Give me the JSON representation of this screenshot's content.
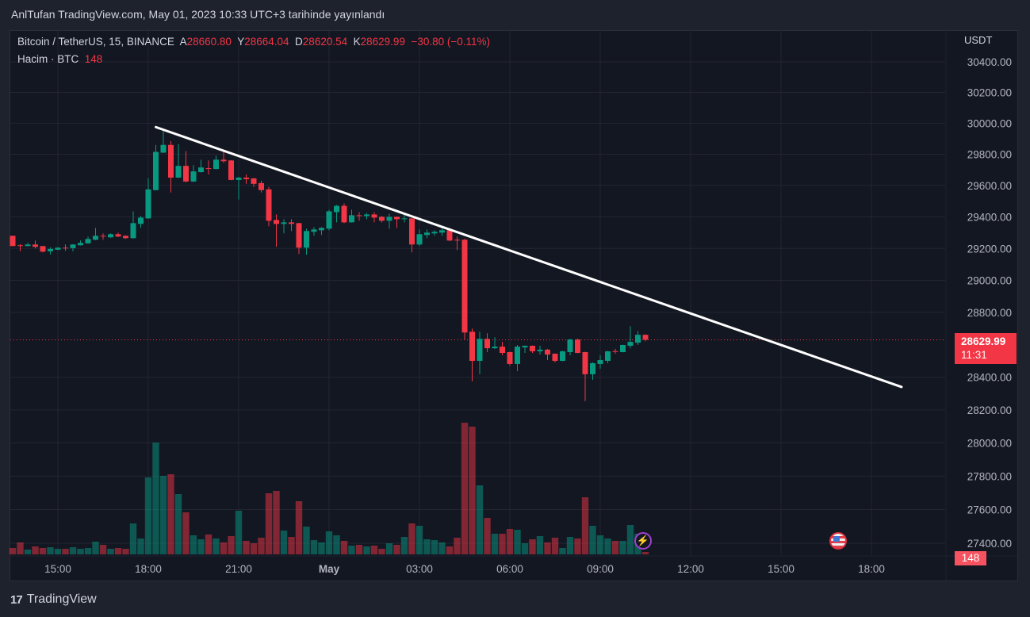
{
  "header": {
    "published": "AnlTufan TradingView.com, May 01, 2023 10:33 UTC+3 tarihinde yayınlandı"
  },
  "legend": {
    "symbol": "Bitcoin / TetherUS, 15, BINANCE",
    "open_label": "A",
    "open": "28660.80",
    "high_label": "Y",
    "high": "28664.04",
    "low_label": "D",
    "low": "28620.54",
    "close_label": "K",
    "close": "28629.99",
    "change": "−30.80 (−0.11%)",
    "volume_title": "Hacim · BTC",
    "volume_value": "148"
  },
  "axis": {
    "currency": "USDT",
    "price_ticks": [
      "30400.00",
      "30200.00",
      "30000.00",
      "29800.00",
      "29600.00",
      "29400.00",
      "29200.00",
      "29000.00",
      "28800.00",
      "28400.00",
      "28200.00",
      "28000.00",
      "27800.00",
      "27600.00",
      "27400.00"
    ],
    "time_ticks": [
      {
        "label": "15:00",
        "index": 6
      },
      {
        "label": "18:00",
        "index": 18
      },
      {
        "label": "21:00",
        "index": 30
      },
      {
        "label": "May",
        "index": 42,
        "bold": true
      },
      {
        "label": "03:00",
        "index": 54
      },
      {
        "label": "06:00",
        "index": 66
      },
      {
        "label": "09:00",
        "index": 78
      },
      {
        "label": "12:00",
        "index": 90
      },
      {
        "label": "15:00",
        "index": 102
      },
      {
        "label": "18:00",
        "index": 114
      }
    ],
    "last_price": "28629.99",
    "countdown": "11:31",
    "last_volume": "148"
  },
  "colors": {
    "up": "#089981",
    "down": "#f23645",
    "bg": "#131722",
    "grid": "#232632",
    "trend": "#ffffff"
  },
  "chart_data": {
    "type": "candlestick",
    "interval_minutes": 15,
    "first_bar_time": "13:30",
    "price_range": [
      27400,
      30400
    ],
    "fields": [
      "open",
      "high",
      "low",
      "close",
      "volume"
    ],
    "candles": [
      [
        29280,
        29280,
        29215,
        29215,
        400
      ],
      [
        29220,
        29227,
        29182,
        29215,
        750
      ],
      [
        29215,
        29235,
        29215,
        29225,
        300
      ],
      [
        29225,
        29250,
        29200,
        29210,
        500
      ],
      [
        29215,
        29215,
        29175,
        29180,
        400
      ],
      [
        29182,
        29207,
        29162,
        29197,
        450
      ],
      [
        29192,
        29207,
        29190,
        29205,
        350
      ],
      [
        29205,
        29225,
        29185,
        29203,
        350
      ],
      [
        29202,
        29227,
        29182,
        29225,
        450
      ],
      [
        29220,
        29250,
        29218,
        29235,
        350
      ],
      [
        29232,
        29275,
        29230,
        29260,
        400
      ],
      [
        29255,
        29330,
        29252,
        29280,
        800
      ],
      [
        29280,
        29295,
        29255,
        29275,
        600
      ],
      [
        29270,
        29295,
        29268,
        29290,
        350
      ],
      [
        29290,
        29300,
        29273,
        29275,
        400
      ],
      [
        29280,
        29282,
        29260,
        29265,
        350
      ],
      [
        29265,
        29435,
        29262,
        29360,
        1950
      ],
      [
        29355,
        29405,
        29330,
        29395,
        1000
      ],
      [
        29390,
        29645,
        29388,
        29575,
        4850
      ],
      [
        29570,
        29860,
        29568,
        29815,
        7050
      ],
      [
        29810,
        29960,
        29808,
        29860,
        4950
      ],
      [
        29860,
        29885,
        29555,
        29650,
        5050
      ],
      [
        29650,
        29865,
        29648,
        29725,
        3800
      ],
      [
        29725,
        29820,
        29620,
        29625,
        2650
      ],
      [
        29625,
        29730,
        29622,
        29690,
        1200
      ],
      [
        29685,
        29765,
        29683,
        29715,
        950
      ],
      [
        29710,
        29760,
        29670,
        29705,
        1250
      ],
      [
        29705,
        29790,
        29703,
        29765,
        1000
      ],
      [
        29765,
        29820,
        29745,
        29755,
        750
      ],
      [
        29760,
        29762,
        29633,
        29635,
        1150
      ],
      [
        29635,
        29655,
        29510,
        29650,
        2750
      ],
      [
        29650,
        29670,
        29610,
        29640,
        850
      ],
      [
        29645,
        29647,
        29590,
        29610,
        700
      ],
      [
        29615,
        29630,
        29555,
        29570,
        1050
      ],
      [
        29575,
        29590,
        29340,
        29375,
        3850
      ],
      [
        29380,
        29415,
        29210,
        29355,
        4000
      ],
      [
        29355,
        29385,
        29295,
        29365,
        1500
      ],
      [
        29365,
        29385,
        29310,
        29355,
        1100
      ],
      [
        29360,
        29362,
        29165,
        29205,
        3350
      ],
      [
        29205,
        29325,
        29160,
        29310,
        1750
      ],
      [
        29305,
        29335,
        29280,
        29320,
        900
      ],
      [
        29315,
        29335,
        29285,
        29330,
        750
      ],
      [
        29325,
        29445,
        29315,
        29435,
        1450
      ],
      [
        29430,
        29475,
        29365,
        29470,
        1200
      ],
      [
        29470,
        29485,
        29360,
        29365,
        850
      ],
      [
        29365,
        29445,
        29363,
        29410,
        550
      ],
      [
        29410,
        29430,
        29375,
        29408,
        600
      ],
      [
        29405,
        29425,
        29385,
        29415,
        500
      ],
      [
        29415,
        29430,
        29365,
        29395,
        550
      ],
      [
        29400,
        29405,
        29365,
        29375,
        350
      ],
      [
        29375,
        29420,
        29325,
        29400,
        700
      ],
      [
        29400,
        29402,
        29330,
        29385,
        600
      ],
      [
        29385,
        29415,
        29365,
        29390,
        1100
      ],
      [
        29390,
        29392,
        29175,
        29225,
        1950
      ],
      [
        29225,
        29320,
        29215,
        29290,
        1800
      ],
      [
        29285,
        29320,
        29265,
        29300,
        950
      ],
      [
        29295,
        29315,
        29280,
        29305,
        900
      ],
      [
        29300,
        29335,
        29280,
        29315,
        750
      ],
      [
        29315,
        29317,
        29245,
        29250,
        500
      ],
      [
        29255,
        29275,
        29190,
        29250,
        1050
      ],
      [
        29255,
        29260,
        28632,
        28675,
        8300
      ],
      [
        28680,
        28700,
        28375,
        28500,
        8050
      ],
      [
        28500,
        28680,
        28418,
        28636,
        4350
      ],
      [
        28636,
        28670,
        28554,
        28578,
        2300
      ],
      [
        28578,
        28646,
        28573,
        28588,
        1300
      ],
      [
        28588,
        28617,
        28535,
        28549,
        1300
      ],
      [
        28554,
        28556,
        28471,
        28481,
        1600
      ],
      [
        28481,
        28598,
        28437,
        28588,
        1550
      ],
      [
        28583,
        28595,
        28549,
        28593,
        700
      ],
      [
        28593,
        28595,
        28549,
        28559,
        950
      ],
      [
        28559,
        28593,
        28539,
        28569,
        1150
      ],
      [
        28569,
        28574,
        28505,
        28539,
        750
      ],
      [
        28544,
        28546,
        28491,
        28500,
        1050
      ],
      [
        28500,
        28562,
        28498,
        28559,
        400
      ],
      [
        28554,
        28635,
        28535,
        28632,
        1100
      ],
      [
        28632,
        28637,
        28547,
        28549,
        1000
      ],
      [
        28554,
        28556,
        28253,
        28418,
        3600
      ],
      [
        28418,
        28491,
        28384,
        28486,
        1800
      ],
      [
        28481,
        28535,
        28452,
        28505,
        1200
      ],
      [
        28500,
        28562,
        28486,
        28559,
        1000
      ],
      [
        28560,
        28574,
        28544,
        28557,
        850
      ],
      [
        28554,
        28600,
        28552,
        28598,
        850
      ],
      [
        28593,
        28714,
        28578,
        28617,
        1850
      ],
      [
        28612,
        28685,
        28598,
        28661,
        1300
      ],
      [
        28660.8,
        28664.04,
        28620.54,
        28629.99,
        148
      ]
    ],
    "trendline": {
      "start": {
        "index": 19,
        "price": 29975
      },
      "end": {
        "index": 118,
        "price": 28340
      }
    },
    "last_price_line": 28629.99
  },
  "events": [
    {
      "icon": "lightning-icon"
    },
    {
      "icon": "us-flag-icon"
    }
  ],
  "footer": {
    "brand": "TradingView"
  }
}
